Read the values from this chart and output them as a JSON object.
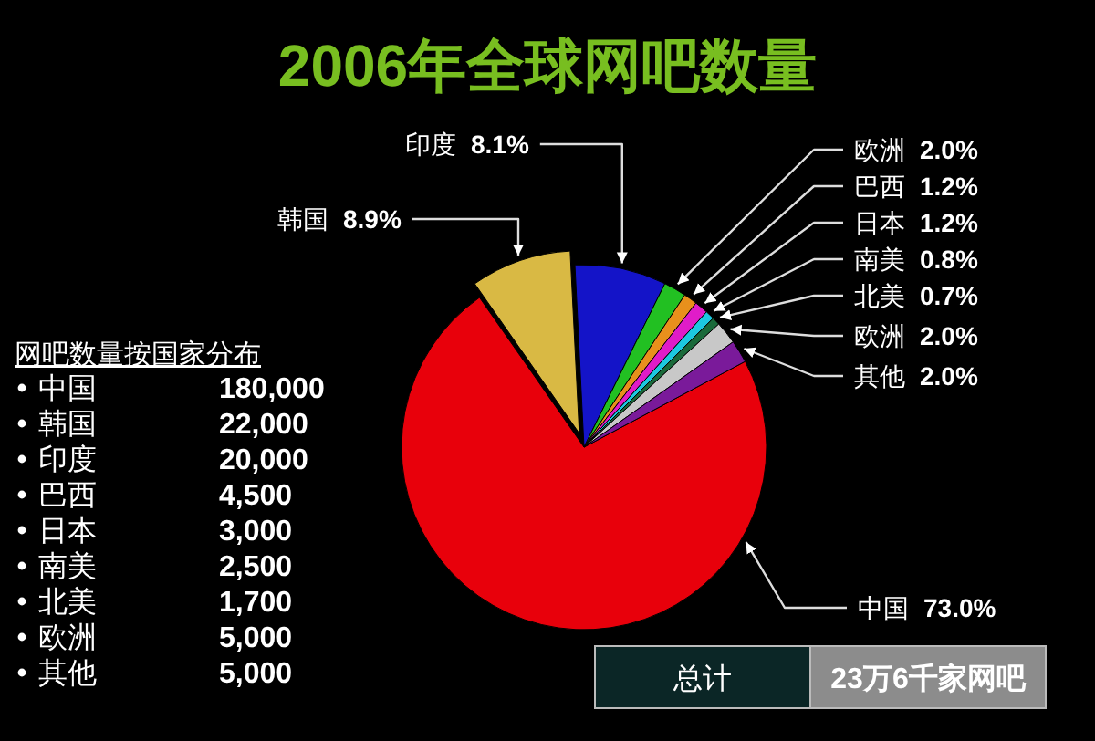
{
  "chart_data": [
    {
      "type": "pie",
      "title": "2006年全球网吧数量",
      "categories": [
        "中国",
        "韩国",
        "印度",
        "欧洲",
        "巴西",
        "日本",
        "南美",
        "北美",
        "欧洲",
        "其他"
      ],
      "values": [
        73.0,
        8.9,
        8.1,
        2.0,
        1.2,
        1.2,
        0.8,
        0.7,
        2.0,
        2.0
      ],
      "value_labels": [
        "73.0%",
        "8.9%",
        "8.1%",
        "2.0%",
        "1.2%",
        "1.2%",
        "0.8%",
        "0.7%",
        "2.0%",
        "2.0%"
      ],
      "colors": [
        "#e8000b",
        "#d9b944",
        "#1414c8",
        "#22c022",
        "#e8901c",
        "#e01cc8",
        "#1cc8e0",
        "#1a6a3a",
        "#c8c8c8",
        "#7a1a9a"
      ],
      "annotations": [
        "总计",
        "23万6千家网吧"
      ]
    },
    {
      "type": "other",
      "title": "网吧数量按国家分布",
      "categories": [
        "中国",
        "韩国",
        "印度",
        "巴西",
        "日本",
        "南美",
        "北美",
        "欧洲",
        "其他"
      ],
      "values": [
        180000,
        22000,
        20000,
        4500,
        3000,
        2500,
        1700,
        5000,
        5000
      ],
      "value_labels": [
        "180,000",
        "22,000",
        "20,000",
        "4,500",
        "3,000",
        "2,500",
        "1,700",
        "5,000",
        "5,000"
      ]
    }
  ]
}
